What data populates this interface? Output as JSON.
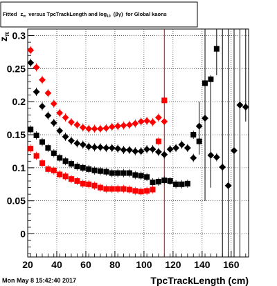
{
  "title_prefix": "Fitted",
  "title_main": "versus TpcTrackLength and log",
  "title_suffix": "for Global kaons",
  "title_z": "z",
  "title_pi": "π",
  "title_10": "10",
  "title_bg": "(βγ)",
  "timestamp": "Mon May  8 15:42:40 2017",
  "chart_data": {
    "type": "scatter",
    "xlabel": "TpcTrackLength (cm)",
    "ylabel": "z_π",
    "xlim": [
      20,
      172
    ],
    "ylim": [
      -0.035,
      0.31
    ],
    "xticks": [
      20,
      40,
      60,
      80,
      100,
      120,
      140,
      160
    ],
    "yticks": [
      0,
      0.05,
      0.1,
      0.15,
      0.2,
      0.25,
      0.3
    ],
    "grid": "dotted",
    "vline": {
      "x": 114,
      "color": "#cc0000"
    },
    "colors": {
      "black": "#000000",
      "red": "#ff0000"
    },
    "series": [
      {
        "marker": "circle",
        "color": "#ff0000",
        "points": [
          [
            22,
            0.278
          ],
          [
            26,
            0.252
          ],
          [
            30,
            0.233
          ],
          [
            34,
            0.213
          ],
          [
            38,
            0.197
          ],
          [
            42,
            0.183
          ],
          [
            46,
            0.176
          ],
          [
            50,
            0.169
          ],
          [
            54,
            0.165
          ],
          [
            58,
            0.161
          ],
          [
            62,
            0.159
          ],
          [
            66,
            0.159
          ],
          [
            70,
            0.159
          ],
          [
            74,
            0.16
          ],
          [
            78,
            0.162
          ],
          [
            82,
            0.163
          ],
          [
            86,
            0.164
          ],
          [
            90,
            0.165
          ],
          [
            94,
            0.167
          ],
          [
            98,
            0.17
          ],
          [
            102,
            0.171
          ],
          [
            106,
            0.169
          ],
          [
            110,
            0.176
          ],
          [
            114,
            0.17
          ]
        ]
      },
      {
        "marker": "circle",
        "color": "#000000",
        "points": [
          [
            22,
            0.259
          ],
          [
            26,
            0.215
          ],
          [
            30,
            0.193
          ],
          [
            34,
            0.179
          ],
          [
            38,
            0.168
          ],
          [
            42,
            0.156
          ],
          [
            46,
            0.147
          ],
          [
            50,
            0.141
          ],
          [
            54,
            0.137
          ],
          [
            58,
            0.135
          ],
          [
            62,
            0.132
          ],
          [
            66,
            0.131
          ],
          [
            70,
            0.131
          ],
          [
            74,
            0.13
          ],
          [
            78,
            0.13
          ],
          [
            82,
            0.129
          ],
          [
            86,
            0.127
          ],
          [
            90,
            0.127
          ],
          [
            94,
            0.125
          ],
          [
            98,
            0.125
          ],
          [
            102,
            0.128
          ],
          [
            106,
            0.128
          ],
          [
            110,
            0.124
          ],
          [
            114,
            0.12
          ],
          [
            118,
            0.128
          ],
          [
            122,
            0.13
          ],
          [
            126,
            0.135
          ],
          [
            130,
            0.13
          ],
          [
            134,
            0.115
          ],
          [
            138,
            0.163
          ],
          [
            142,
            0.175
          ],
          [
            146,
            0.119
          ],
          [
            150,
            0.116
          ],
          [
            154,
            0.101
          ],
          [
            158,
            0.073
          ],
          [
            162,
            0.126
          ],
          [
            166,
            0.195
          ],
          [
            170,
            0.192
          ]
        ]
      },
      {
        "marker": "square",
        "color": "#000000",
        "points": [
          [
            22,
            0.158
          ],
          [
            26,
            0.149
          ],
          [
            30,
            0.139
          ],
          [
            34,
            0.13
          ],
          [
            38,
            0.122
          ],
          [
            42,
            0.115
          ],
          [
            46,
            0.11
          ],
          [
            50,
            0.106
          ],
          [
            54,
            0.102
          ],
          [
            58,
            0.1
          ],
          [
            62,
            0.098
          ],
          [
            66,
            0.096
          ],
          [
            70,
            0.095
          ],
          [
            74,
            0.094
          ],
          [
            78,
            0.092
          ],
          [
            82,
            0.092
          ],
          [
            86,
            0.092
          ],
          [
            90,
            0.092
          ],
          [
            94,
            0.089
          ],
          [
            98,
            0.088
          ],
          [
            102,
            0.086
          ],
          [
            106,
            0.078
          ],
          [
            110,
            0.079
          ],
          [
            114,
            0.081
          ],
          [
            118,
            0.08
          ],
          [
            122,
            0.075
          ],
          [
            126,
            0.075
          ],
          [
            130,
            0.076
          ],
          [
            134,
            0.15
          ],
          [
            138,
            0.14
          ],
          [
            142,
            0.228
          ],
          [
            146,
            0.234
          ],
          [
            150,
            0.28
          ]
        ]
      },
      {
        "marker": "square",
        "color": "#ff0000",
        "points": [
          [
            22,
            0.129
          ],
          [
            26,
            0.118
          ],
          [
            30,
            0.107
          ],
          [
            34,
            0.098
          ],
          [
            38,
            0.096
          ],
          [
            42,
            0.09
          ],
          [
            46,
            0.087
          ],
          [
            50,
            0.083
          ],
          [
            54,
            0.08
          ],
          [
            58,
            0.076
          ],
          [
            62,
            0.075
          ],
          [
            66,
            0.073
          ],
          [
            70,
            0.07
          ],
          [
            74,
            0.068
          ],
          [
            78,
            0.068
          ],
          [
            82,
            0.068
          ],
          [
            86,
            0.068
          ],
          [
            90,
            0.067
          ],
          [
            94,
            0.065
          ],
          [
            98,
            0.064
          ],
          [
            102,
            0.065
          ],
          [
            106,
            0.067
          ],
          [
            110,
            0.14
          ],
          [
            114,
            0.202
          ]
        ]
      }
    ],
    "errorbars": [
      {
        "x": 150,
        "lo": 0.24,
        "hi": 0.31
      },
      {
        "x": 154,
        "lo": -0.035,
        "hi": 0.31
      },
      {
        "x": 158,
        "lo": -0.035,
        "hi": 0.31
      },
      {
        "x": 162,
        "lo": -0.035,
        "hi": 0.31
      },
      {
        "x": 166,
        "lo": -0.035,
        "hi": 0.31
      },
      {
        "x": 170,
        "lo": 0.17,
        "hi": 0.31
      },
      {
        "x": 142,
        "lo": 0.05,
        "hi": 0.31
      },
      {
        "x": 146,
        "lo": 0.07,
        "hi": 0.23
      },
      {
        "x": 138,
        "lo": 0.12,
        "hi": 0.2
      }
    ]
  }
}
